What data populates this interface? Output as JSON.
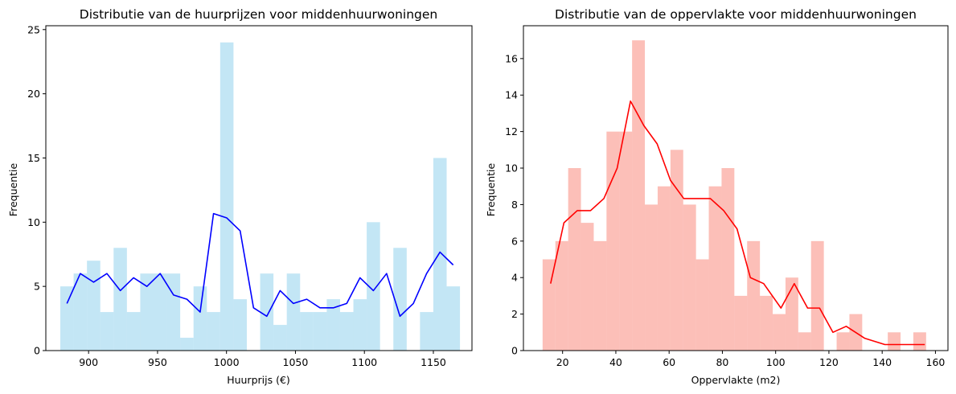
{
  "chart_data": [
    {
      "type": "bar",
      "title": "Distributie van de huurprijzen voor middenhuurwoningen",
      "xlabel": "Huurprijs (€)",
      "ylabel": "Frequentie",
      "xlim": [
        869,
        1178
      ],
      "ylim": [
        0,
        25.3
      ],
      "xticks": [
        900,
        950,
        1000,
        1050,
        1100,
        1150
      ],
      "yticks": [
        0,
        5,
        10,
        15,
        20,
        25
      ],
      "bar_color": "#87ceeb",
      "bar_opacity": 0.5,
      "line_color": "#0000ff",
      "grid": false,
      "bins": {
        "start": 879.5,
        "width": 9.66,
        "counts": [
          5,
          6,
          7,
          3,
          8,
          3,
          6,
          6,
          6,
          1,
          5,
          3,
          24,
          4,
          0,
          6,
          2,
          6,
          3,
          3,
          4,
          3,
          4,
          10,
          0,
          8,
          0,
          3,
          15,
          5
        ]
      },
      "line": {
        "x": [
          884.3,
          894.0,
          903.6,
          913.3,
          923.0,
          932.6,
          942.3,
          951.9,
          961.6,
          971.3,
          980.9,
          990.6,
          1000.2,
          1009.9,
          1019.6,
          1029.2,
          1038.9,
          1048.5,
          1058.2,
          1067.8,
          1077.5,
          1087.2,
          1096.8,
          1106.5,
          1116.1,
          1125.8,
          1135.5,
          1145.1,
          1154.8,
          1164.4
        ],
        "y": [
          3.67,
          6.0,
          5.33,
          6.0,
          4.67,
          5.67,
          5.0,
          6.0,
          4.33,
          4.0,
          3.0,
          10.67,
          10.33,
          9.33,
          3.33,
          2.67,
          4.67,
          3.67,
          4.0,
          3.33,
          3.33,
          3.67,
          5.67,
          4.67,
          6.0,
          2.67,
          3.67,
          6.0,
          7.67,
          6.67
        ]
      }
    },
    {
      "type": "bar",
      "title": "Distributie van de oppervlakte voor middenhuurwoningen",
      "xlabel": "Oppervlakte (m2)",
      "ylabel": "Frequentie",
      "xlim": [
        5.3,
        164.7
      ],
      "ylim": [
        0,
        17.8
      ],
      "xticks": [
        20,
        40,
        60,
        80,
        100,
        120,
        140,
        160
      ],
      "yticks": [
        0,
        2,
        4,
        6,
        8,
        10,
        12,
        14,
        16
      ],
      "bar_color": "#fa8072",
      "bar_opacity": 0.5,
      "line_color": "#ff0000",
      "grid": false,
      "bins": {
        "start": 12.5,
        "width": 4.8,
        "counts": [
          5,
          6,
          10,
          7,
          6,
          12,
          12,
          17,
          8,
          9,
          11,
          8,
          5,
          9,
          10,
          3,
          6,
          3,
          2,
          4,
          1,
          6,
          0,
          1,
          2,
          0,
          0,
          1,
          0,
          1
        ]
      },
      "line": {
        "x": [
          15.5,
          20.5,
          25.5,
          30.5,
          35.5,
          40.5,
          45.5,
          50.5,
          55.5,
          60.5,
          65.5,
          70.5,
          75.5,
          80.5,
          85.5,
          90.5,
          95.5,
          102.0,
          107.0,
          112.0,
          116.5,
          121.5,
          126.5,
          133.5,
          141.0,
          148.5,
          156.0
        ],
        "y": [
          3.67,
          7.0,
          7.67,
          7.67,
          8.33,
          10.0,
          13.67,
          12.33,
          11.33,
          9.33,
          8.33,
          8.33,
          8.33,
          7.67,
          6.67,
          4.0,
          3.67,
          2.33,
          3.67,
          2.33,
          2.33,
          1.0,
          1.33,
          0.67,
          0.33,
          0.33,
          0.33
        ]
      }
    }
  ]
}
